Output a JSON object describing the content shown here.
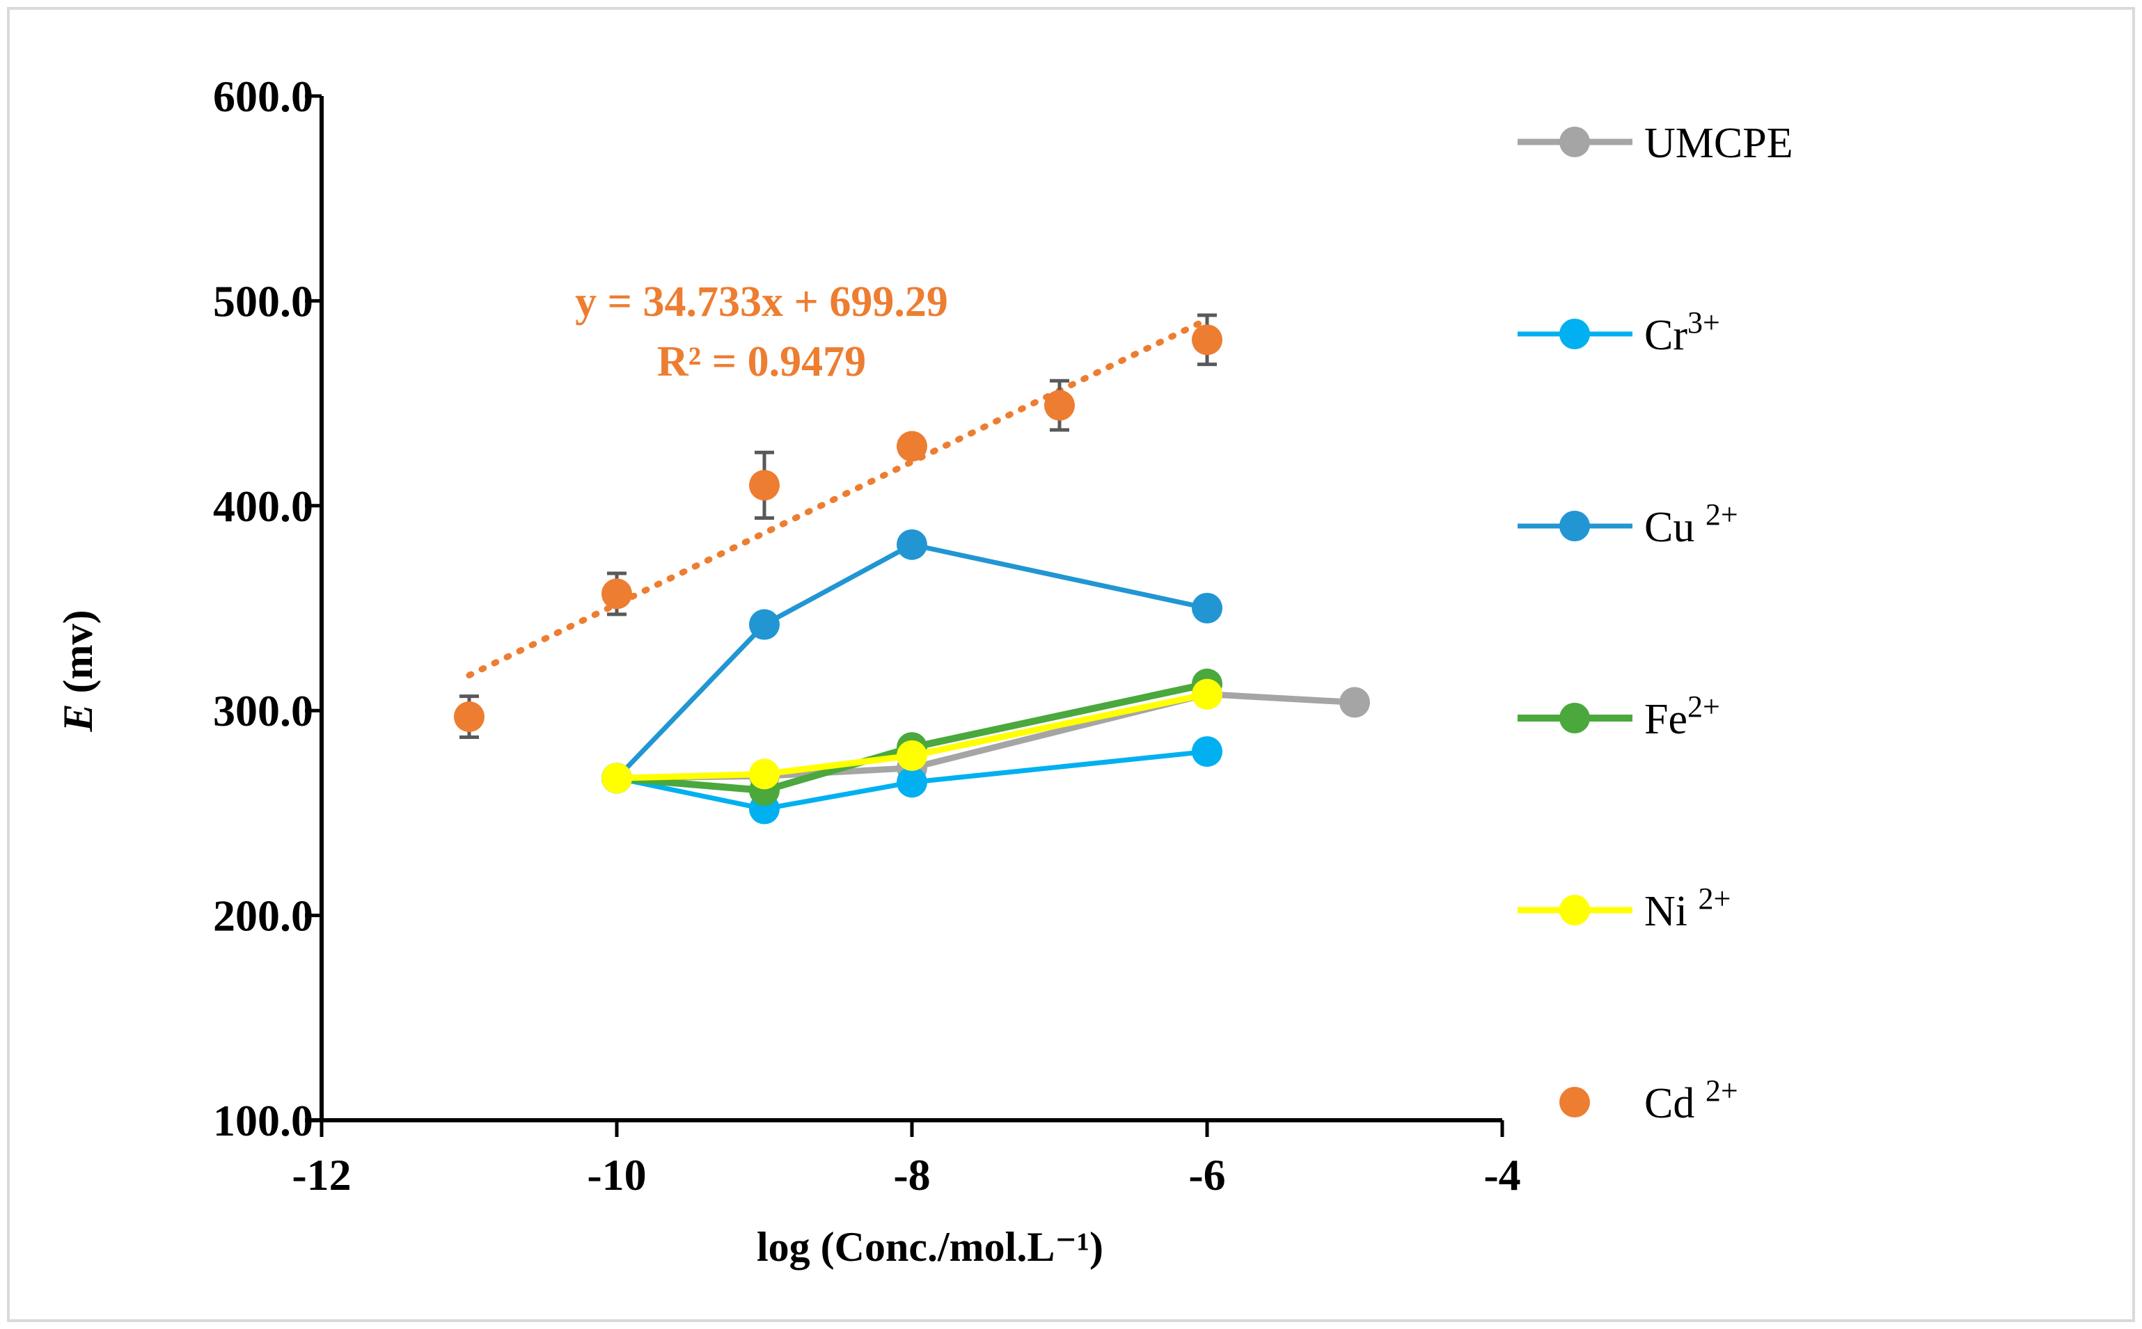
{
  "chart_data": {
    "type": "line",
    "title": "",
    "xlabel": "log (Conc./mol.L⁻¹)",
    "ylabel": {
      "italic": "E",
      "rest": " (mv)"
    },
    "xlim": [
      -12,
      -4
    ],
    "ylim": [
      100,
      600
    ],
    "x_ticks": [
      -12,
      -10,
      -8,
      -6,
      -4
    ],
    "x_tick_labels": [
      "-12",
      "-10",
      "-8",
      "-6",
      "-4"
    ],
    "y_ticks": [
      100,
      200,
      300,
      400,
      500,
      600
    ],
    "y_tick_labels": [
      "100.0",
      "200.0",
      "300.0",
      "400.0",
      "500.0",
      "600.0"
    ],
    "grid": false,
    "legend_position": "right",
    "series": [
      {
        "name_base": "UMCPE",
        "name_sup": "",
        "color": "#a5a5a5",
        "style": "line-marker",
        "stroke_width": 9,
        "x": [
          -10,
          -9,
          -8,
          -6,
          -5
        ],
        "y": [
          267,
          268,
          272,
          308,
          304
        ]
      },
      {
        "name_base": "Cr",
        "name_sup": "3+",
        "color": "#00b0f0",
        "style": "line-marker",
        "stroke_width": 7,
        "x": [
          -10,
          -9,
          -8,
          -6
        ],
        "y": [
          267,
          252,
          265,
          280
        ]
      },
      {
        "name_base": "Cu ",
        "name_sup": "2+",
        "color": "#2196d3",
        "style": "line-marker",
        "stroke_width": 7,
        "x": [
          -10,
          -9,
          -8,
          -6
        ],
        "y": [
          267,
          342,
          381,
          350
        ]
      },
      {
        "name_base": "Fe",
        "name_sup": "2+",
        "color": "#4aa83d",
        "style": "line-marker",
        "stroke_width": 10,
        "x": [
          -10,
          -9,
          -8,
          -6
        ],
        "y": [
          267,
          261,
          282,
          313
        ]
      },
      {
        "name_base": "Ni ",
        "name_sup": "2+",
        "color": "#ffff00",
        "style": "line-marker",
        "stroke_width": 9,
        "x": [
          -10,
          -9,
          -8,
          -6
        ],
        "y": [
          267,
          269,
          278,
          308
        ]
      },
      {
        "name_base": "Cd ",
        "name_sup": "2+",
        "color": "#ed7d31",
        "style": "marker",
        "stroke_width": 0,
        "x": [
          -11,
          -10,
          -9,
          -8,
          -7,
          -6
        ],
        "y": [
          297,
          357,
          410,
          429,
          449,
          481
        ],
        "error": [
          10,
          10,
          16,
          5,
          12,
          12
        ]
      }
    ],
    "trendline": {
      "series": "Cd",
      "slope": 34.733,
      "intercept": 699.29,
      "x_range": [
        -11,
        -6
      ],
      "color": "#ed7d31",
      "equation": "y = 34.733x + 699.29",
      "r_squared": "R² = 0.9479"
    }
  }
}
